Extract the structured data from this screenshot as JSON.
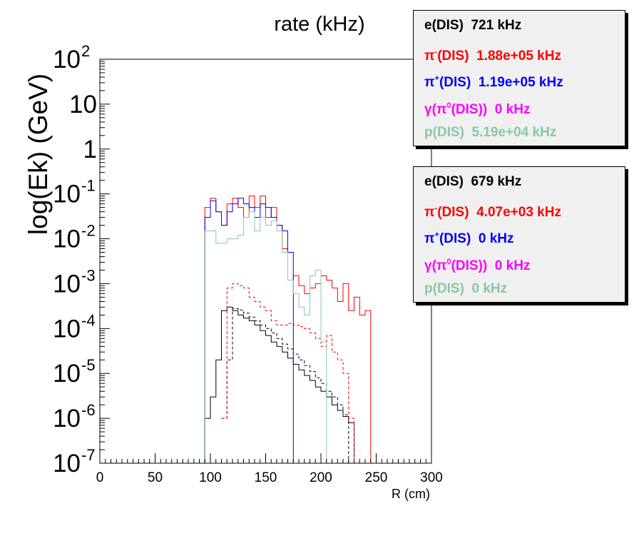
{
  "chart_data": {
    "type": "histogram",
    "title": "rate (kHz)",
    "xlabel": "R (cm)",
    "ylabel": "log(Ek) (GeV)",
    "xlim": [
      0,
      300
    ],
    "ylim": [
      1e-07,
      100
    ],
    "log_y": true,
    "bin_width": 5,
    "x_ticks": [
      "0",
      "50",
      "100",
      "150",
      "200",
      "250",
      "300"
    ],
    "y_ticks": [
      {
        "value": 1e-07,
        "base": "10",
        "exp": "-7"
      },
      {
        "value": 1e-06,
        "base": "10",
        "exp": "-6"
      },
      {
        "value": 1e-05,
        "base": "10",
        "exp": "-5"
      },
      {
        "value": 0.0001,
        "base": "10",
        "exp": "-4"
      },
      {
        "value": 0.001,
        "base": "10",
        "exp": "-3"
      },
      {
        "value": 0.01,
        "base": "10",
        "exp": "-2"
      },
      {
        "value": 0.1,
        "base": "10",
        "exp": "-1"
      },
      {
        "value": 1,
        "base": "1",
        "exp": ""
      },
      {
        "value": 10,
        "base": "10",
        "exp": ""
      },
      {
        "value": 100,
        "base": "10",
        "exp": "2"
      }
    ],
    "series": [
      {
        "color": "#000000",
        "dashed": false,
        "x_start": 90,
        "values": [
          1e-07,
          1e-06,
          3e-06,
          2e-05,
          0.00025,
          0.0003,
          0.00025,
          0.0002,
          0.00017,
          0.00015,
          0.00012,
          9e-05,
          7e-05,
          5e-05,
          4e-05,
          3e-05,
          2.2e-05,
          1.6e-05,
          1.2e-05,
          9e-06,
          7e-06,
          5e-06,
          4e-06,
          3e-06,
          2e-06,
          1.5e-06,
          1.1e-06,
          8e-07,
          1e-07,
          1e-07
        ]
      },
      {
        "color": "#000000",
        "dashed": true,
        "x_start": 110,
        "values": [
          1e-06,
          2e-05,
          0.00028,
          0.00026,
          0.00022,
          0.00018,
          0.00015,
          0.00012,
          0.0001,
          8e-05,
          6e-05,
          4.5e-05,
          3.5e-05,
          2.7e-05,
          2e-05,
          1.5e-05,
          1.1e-05,
          8e-06,
          6e-06,
          4e-06,
          3e-06,
          2e-06,
          1.2e-06,
          1e-07,
          1e-07
        ]
      },
      {
        "color": "#ff0000",
        "dashed": false,
        "x_start": 90,
        "values": [
          1e-07,
          0.05,
          0.08,
          0.04,
          0.02,
          0.06,
          0.08,
          0.05,
          0.03,
          0.09,
          0.05,
          0.09,
          0.03,
          0.05,
          0.02,
          0.006,
          0.0012,
          0.0015,
          0.0009,
          0.0006,
          0.0008,
          0.001,
          0.0015,
          0.0012,
          0.0008,
          0.0004,
          0.001,
          0.00025,
          0.0005,
          0.0002,
          0.00025,
          1e-07
        ]
      },
      {
        "color": "#ff0000",
        "dashed": true,
        "x_start": 110,
        "values": [
          1e-06,
          0.0008,
          0.001,
          0.0009,
          0.0008,
          0.0005,
          0.0004,
          0.0003,
          0.00025,
          0.00015,
          0.00012,
          0.00012,
          0.00013,
          0.00012,
          0.00011,
          0.0001,
          8e-05,
          6e-05,
          4e-05,
          7e-05,
          3e-05,
          2e-05,
          1e-05,
          1e-06,
          1e-07
        ]
      },
      {
        "color": "#0000ff",
        "dashed": false,
        "x_start": 90,
        "values": [
          1e-07,
          0.03,
          0.07,
          0.04,
          0.02,
          0.04,
          0.06,
          0.08,
          0.06,
          0.05,
          0.03,
          0.06,
          0.05,
          0.03,
          0.02,
          0.015,
          0.005,
          1e-07
        ]
      },
      {
        "color": "#88c8a8",
        "dashed": false,
        "x_start": 90,
        "values": [
          1e-07,
          0.015,
          0.015,
          0.008,
          0.008,
          0.01,
          0.01,
          0.012,
          0.03,
          0.04,
          0.015,
          0.03,
          0.02,
          0.025,
          0.015,
          0.005,
          0.0012,
          0.0006,
          0.0003,
          0.0002,
          0.0015,
          0.002,
          5e-05,
          1e-07
        ]
      }
    ]
  },
  "legends": [
    {
      "entries": [
        {
          "prefix": "e(DIS)",
          "sup": "",
          "mid": "",
          "sup2": "",
          "suffix": "",
          "rate": "721 kHz",
          "color": "#000000"
        },
        {
          "prefix": "π",
          "sup": "-",
          "mid": "(DIS)",
          "sup2": "",
          "suffix": "",
          "rate": "1.88e+05 kHz",
          "color": "#ff0000"
        },
        {
          "prefix": "π",
          "sup": "+",
          "mid": "(DIS)",
          "sup2": "",
          "suffix": "",
          "rate": "1.19e+05 kHz",
          "color": "#0000ff"
        },
        {
          "prefix": "γ(π",
          "sup": "0",
          "mid": "(DIS))",
          "sup2": "",
          "suffix": "",
          "rate": "0 kHz",
          "color": "#ff00ff"
        },
        {
          "prefix": "p(DIS)",
          "sup": "",
          "mid": "",
          "sup2": "",
          "suffix": "",
          "rate": "5.19e+04 kHz",
          "color": "#88c8a8"
        }
      ]
    },
    {
      "entries": [
        {
          "prefix": "e(DIS)",
          "sup": "",
          "mid": "",
          "sup2": "",
          "suffix": "",
          "rate": "679 kHz",
          "color": "#000000"
        },
        {
          "prefix": "π",
          "sup": "-",
          "mid": "(DIS)",
          "sup2": "",
          "suffix": "",
          "rate": "4.07e+03 kHz",
          "color": "#ff0000"
        },
        {
          "prefix": "π",
          "sup": "+",
          "mid": "(DIS)",
          "sup2": "",
          "suffix": "",
          "rate": "0 kHz",
          "color": "#0000ff"
        },
        {
          "prefix": "γ(π",
          "sup": "0",
          "mid": "(DIS))",
          "sup2": "",
          "suffix": "",
          "rate": "0 kHz",
          "color": "#ff00ff"
        },
        {
          "prefix": "p(DIS)",
          "sup": "",
          "mid": "",
          "sup2": "",
          "suffix": "",
          "rate": "0 kHz",
          "color": "#88c8a8"
        }
      ]
    }
  ]
}
